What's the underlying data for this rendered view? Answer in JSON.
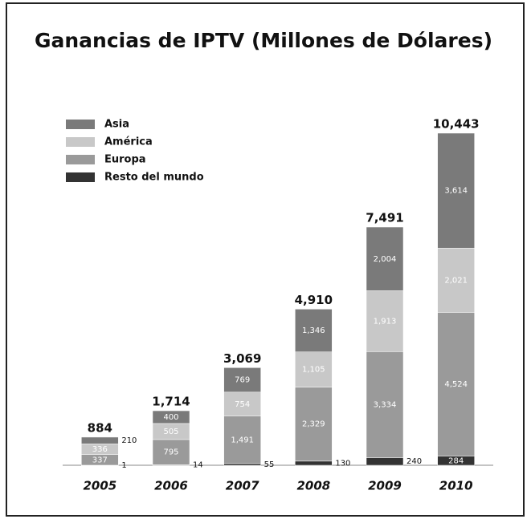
{
  "chart_data": {
    "type": "stacked-bar",
    "title": "Ganancias de IPTV (Millones de Dólares)",
    "categories": [
      "2005",
      "2006",
      "2007",
      "2008",
      "2009",
      "2010"
    ],
    "series": [
      {
        "name": "Resto del mundo",
        "color": "#333333",
        "values": [
          1,
          14,
          55,
          130,
          240,
          284
        ]
      },
      {
        "name": "Europa",
        "color": "#9a9a9a",
        "values": [
          337,
          795,
          1491,
          2329,
          3334,
          4524
        ],
        "value_labels": [
          "337",
          "795",
          "1,491",
          "2,329",
          "3,334",
          "4,524"
        ]
      },
      {
        "name": "América",
        "color": "#c8c8c8",
        "values": [
          336,
          505,
          754,
          1105,
          1913,
          2021
        ],
        "value_labels": [
          "336",
          "505",
          "754",
          "1,105",
          "1,913",
          "2,021"
        ]
      },
      {
        "name": "Asia",
        "color": "#7a7a7a",
        "values": [
          210,
          400,
          769,
          1346,
          2004,
          3614
        ],
        "value_labels": [
          "210",
          "400",
          "769",
          "1,346",
          "2,004",
          "3,614"
        ]
      }
    ],
    "totals": [
      884,
      1714,
      3069,
      4910,
      7491,
      10443
    ],
    "total_labels": [
      "884",
      "1,714",
      "3,069",
      "4,910",
      "7,491",
      "10,443"
    ],
    "legend": "upper left"
  }
}
